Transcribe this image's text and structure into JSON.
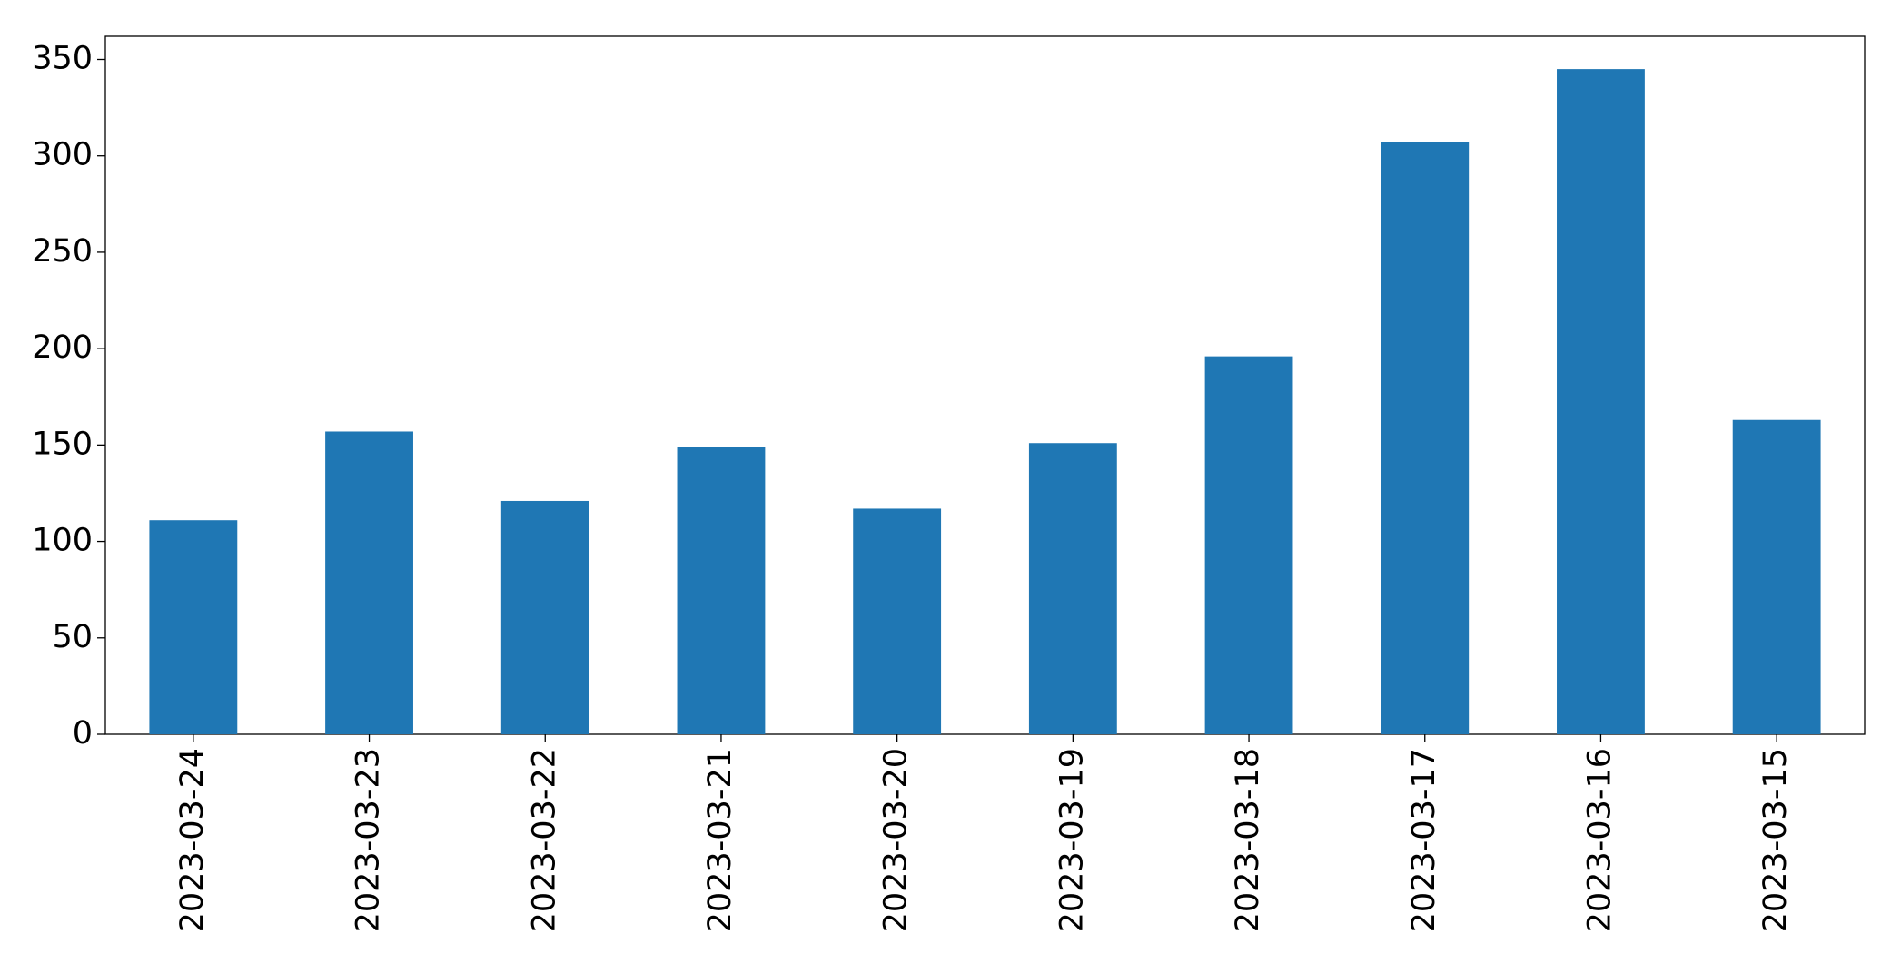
{
  "chart_data": {
    "type": "bar",
    "categories": [
      "2023-03-24",
      "2023-03-23",
      "2023-03-22",
      "2023-03-21",
      "2023-03-20",
      "2023-03-19",
      "2023-03-18",
      "2023-03-17",
      "2023-03-16",
      "2023-03-15"
    ],
    "values": [
      111,
      157,
      121,
      149,
      117,
      151,
      196,
      307,
      345,
      163
    ],
    "color": "#1f77b4",
    "ylim": [
      0,
      362
    ],
    "yticks": [
      0,
      50,
      100,
      150,
      200,
      250,
      300,
      350
    ],
    "grid": false
  }
}
